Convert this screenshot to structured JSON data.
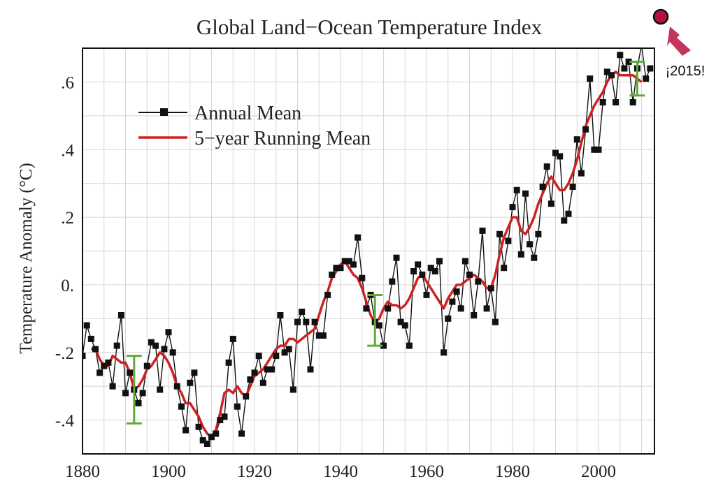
{
  "chart_data": {
    "type": "line",
    "title": "Global Land−Ocean Temperature Index",
    "xlabel": "",
    "ylabel": "Temperature Anomaly (°C)",
    "xlim": [
      1880,
      2013
    ],
    "ylim": [
      -0.5,
      0.7
    ],
    "x_ticks": [
      1880,
      1900,
      1920,
      1940,
      1960,
      1980,
      2000
    ],
    "y_ticks": [
      {
        "value": -0.4,
        "label": "-.4"
      },
      {
        "value": -0.2,
        "label": "-.2"
      },
      {
        "value": 0.0,
        "label": "0."
      },
      {
        "value": 0.2,
        "label": ".2"
      },
      {
        "value": 0.4,
        "label": ".4"
      },
      {
        "value": 0.6,
        "label": ".6"
      }
    ],
    "grid": true,
    "legend_position": "top-left",
    "series": [
      {
        "name": "Annual Mean",
        "color": "#111111",
        "marker": "square",
        "x": [
          1880,
          1881,
          1882,
          1883,
          1884,
          1885,
          1886,
          1887,
          1888,
          1889,
          1890,
          1891,
          1892,
          1893,
          1894,
          1895,
          1896,
          1897,
          1898,
          1899,
          1900,
          1901,
          1902,
          1903,
          1904,
          1905,
          1906,
          1907,
          1908,
          1909,
          1910,
          1911,
          1912,
          1913,
          1914,
          1915,
          1916,
          1917,
          1918,
          1919,
          1920,
          1921,
          1922,
          1923,
          1924,
          1925,
          1926,
          1927,
          1928,
          1929,
          1930,
          1931,
          1932,
          1933,
          1934,
          1935,
          1936,
          1937,
          1938,
          1939,
          1940,
          1941,
          1942,
          1943,
          1944,
          1945,
          1946,
          1947,
          1948,
          1949,
          1950,
          1951,
          1952,
          1953,
          1954,
          1955,
          1956,
          1957,
          1958,
          1959,
          1960,
          1961,
          1962,
          1963,
          1964,
          1965,
          1966,
          1967,
          1968,
          1969,
          1970,
          1971,
          1972,
          1973,
          1974,
          1975,
          1976,
          1977,
          1978,
          1979,
          1980,
          1981,
          1982,
          1983,
          1984,
          1985,
          1986,
          1987,
          1988,
          1989,
          1990,
          1991,
          1992,
          1993,
          1994,
          1995,
          1996,
          1997,
          1998,
          1999,
          2000,
          2001,
          2002,
          2003,
          2004,
          2005,
          2006,
          2007,
          2008,
          2009,
          2010,
          2011,
          2012
        ],
        "values": [
          -0.21,
          -0.12,
          -0.16,
          -0.19,
          -0.26,
          -0.24,
          -0.23,
          -0.3,
          -0.18,
          -0.09,
          -0.32,
          -0.26,
          -0.31,
          -0.35,
          -0.32,
          -0.24,
          -0.17,
          -0.18,
          -0.31,
          -0.19,
          -0.14,
          -0.2,
          -0.3,
          -0.36,
          -0.43,
          -0.29,
          -0.26,
          -0.42,
          -0.46,
          -0.47,
          -0.45,
          -0.44,
          -0.4,
          -0.39,
          -0.23,
          -0.16,
          -0.36,
          -0.44,
          -0.33,
          -0.28,
          -0.26,
          -0.21,
          -0.29,
          -0.25,
          -0.25,
          -0.21,
          -0.09,
          -0.2,
          -0.19,
          -0.31,
          -0.11,
          -0.08,
          -0.11,
          -0.25,
          -0.11,
          -0.15,
          -0.15,
          -0.03,
          0.03,
          0.05,
          0.05,
          0.07,
          0.07,
          0.06,
          0.14,
          0.02,
          -0.07,
          -0.03,
          -0.11,
          -0.12,
          -0.18,
          -0.07,
          0.01,
          0.08,
          -0.11,
          -0.12,
          -0.18,
          0.04,
          0.06,
          0.03,
          -0.03,
          0.05,
          0.04,
          0.07,
          -0.2,
          -0.1,
          -0.05,
          -0.02,
          -0.07,
          0.07,
          0.03,
          -0.09,
          0.01,
          0.16,
          -0.07,
          -0.01,
          -0.11,
          0.15,
          0.05,
          0.13,
          0.23,
          0.28,
          0.09,
          0.27,
          0.12,
          0.08,
          0.15,
          0.29,
          0.35,
          0.24,
          0.39,
          0.38,
          0.19,
          0.21,
          0.29,
          0.43,
          0.33,
          0.46,
          0.61,
          0.4,
          0.4,
          0.54,
          0.63,
          0.62,
          0.54,
          0.68,
          0.64,
          0.66,
          0.54,
          0.64,
          0.71,
          0.61,
          0.64
        ]
      },
      {
        "name": "5−year Running Mean",
        "color": "#cc2222",
        "x": [
          1882,
          1883,
          1884,
          1885,
          1886,
          1887,
          1888,
          1889,
          1890,
          1891,
          1892,
          1893,
          1894,
          1895,
          1896,
          1897,
          1898,
          1899,
          1900,
          1901,
          1902,
          1903,
          1904,
          1905,
          1906,
          1907,
          1908,
          1909,
          1910,
          1911,
          1912,
          1913,
          1914,
          1915,
          1916,
          1917,
          1918,
          1919,
          1920,
          1921,
          1922,
          1923,
          1924,
          1925,
          1926,
          1927,
          1928,
          1929,
          1930,
          1931,
          1932,
          1933,
          1934,
          1935,
          1936,
          1937,
          1938,
          1939,
          1940,
          1941,
          1942,
          1943,
          1944,
          1945,
          1946,
          1947,
          1948,
          1949,
          1950,
          1951,
          1952,
          1953,
          1954,
          1955,
          1956,
          1957,
          1958,
          1959,
          1960,
          1961,
          1962,
          1963,
          1964,
          1965,
          1966,
          1967,
          1968,
          1969,
          1970,
          1971,
          1972,
          1973,
          1974,
          1975,
          1976,
          1977,
          1978,
          1979,
          1980,
          1981,
          1982,
          1983,
          1984,
          1985,
          1986,
          1987,
          1988,
          1989,
          1990,
          1991,
          1992,
          1993,
          1994,
          1995,
          1996,
          1997,
          1998,
          1999,
          2000,
          2001,
          2002,
          2003,
          2004,
          2005,
          2006,
          2007,
          2008,
          2009,
          2010
        ],
        "values": [
          -0.19,
          -0.19,
          -0.22,
          -0.24,
          -0.24,
          -0.21,
          -0.22,
          -0.23,
          -0.23,
          -0.26,
          -0.31,
          -0.3,
          -0.28,
          -0.25,
          -0.24,
          -0.22,
          -0.2,
          -0.21,
          -0.23,
          -0.26,
          -0.3,
          -0.32,
          -0.35,
          -0.35,
          -0.37,
          -0.39,
          -0.42,
          -0.44,
          -0.45,
          -0.43,
          -0.38,
          -0.32,
          -0.31,
          -0.32,
          -0.3,
          -0.32,
          -0.33,
          -0.3,
          -0.27,
          -0.26,
          -0.25,
          -0.23,
          -0.21,
          -0.19,
          -0.18,
          -0.18,
          -0.16,
          -0.16,
          -0.17,
          -0.16,
          -0.15,
          -0.14,
          -0.13,
          -0.09,
          -0.05,
          -0.02,
          0.02,
          0.04,
          0.06,
          0.07,
          0.05,
          0.03,
          0.02,
          -0.01,
          -0.05,
          -0.09,
          -0.11,
          -0.1,
          -0.07,
          -0.05,
          -0.06,
          -0.06,
          -0.07,
          -0.06,
          -0.04,
          -0.01,
          0.02,
          0.03,
          0.01,
          -0.01,
          -0.03,
          -0.05,
          -0.07,
          -0.04,
          -0.02,
          0.0,
          0.0,
          0.01,
          0.02,
          0.03,
          0.02,
          0.01,
          -0.01,
          -0.01,
          0.03,
          0.09,
          0.14,
          0.17,
          0.2,
          0.2,
          0.16,
          0.15,
          0.17,
          0.2,
          0.24,
          0.27,
          0.3,
          0.32,
          0.3,
          0.28,
          0.28,
          0.3,
          0.33,
          0.37,
          0.42,
          0.47,
          0.5,
          0.53,
          0.55,
          0.57,
          0.6,
          0.62,
          0.63,
          0.62,
          0.62,
          0.62,
          0.62,
          0.61,
          0.6
        ]
      }
    ],
    "error_bars": [
      {
        "x": 1892,
        "low": -0.41,
        "high": -0.21
      },
      {
        "x": 1948,
        "low": -0.18,
        "high": -0.03
      },
      {
        "x": 2009,
        "low": 0.56,
        "high": 0.66
      }
    ],
    "error_bar_color": "#5faa3a"
  },
  "annotation": {
    "text": "¡2015!",
    "year": 2015,
    "dot_color": "#b5123f",
    "arrow_color": "#c4355b"
  }
}
